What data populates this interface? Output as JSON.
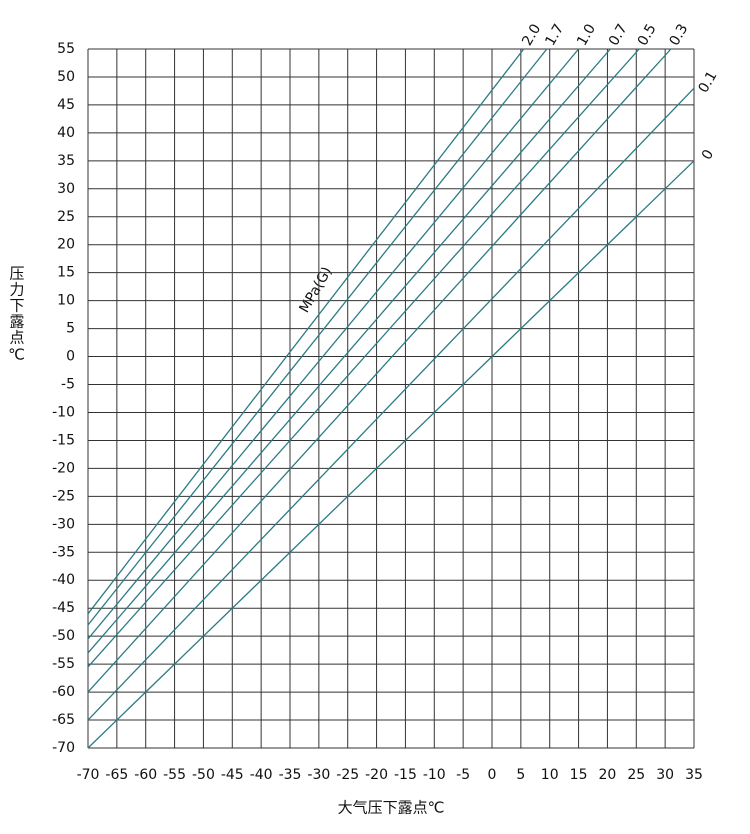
{
  "chart_data": {
    "type": "line",
    "y_label": "压力下露点℃",
    "x_label": "大气压下露点℃",
    "annotation": "MPa(G)",
    "xlim": [
      -70,
      35
    ],
    "ylim": [
      -70,
      55
    ],
    "xticks": [
      -70,
      -65,
      -60,
      -55,
      -50,
      -45,
      -40,
      -35,
      -30,
      -25,
      -20,
      -15,
      -10,
      -5,
      0,
      5,
      10,
      15,
      20,
      25,
      30,
      35
    ],
    "yticks": [
      -70,
      -65,
      -60,
      -55,
      -50,
      -45,
      -40,
      -35,
      -30,
      -25,
      -20,
      -15,
      -10,
      -5,
      0,
      5,
      10,
      15,
      20,
      25,
      30,
      35,
      40,
      45,
      50,
      55
    ],
    "grid": true,
    "series": [
      {
        "name": "2.0",
        "color": "#2a7b84",
        "x": [
          -70,
          5.5
        ],
        "values": [
          -46,
          55
        ]
      },
      {
        "name": "1.7",
        "color": "#2a7b84",
        "x": [
          -70,
          9.5
        ],
        "values": [
          -48,
          55
        ]
      },
      {
        "name": "1.0",
        "color": "#2a7b84",
        "x": [
          -70,
          15
        ],
        "values": [
          -50.5,
          55
        ]
      },
      {
        "name": "0.7",
        "color": "#2a7b84",
        "x": [
          -70,
          20.5
        ],
        "values": [
          -53,
          55
        ]
      },
      {
        "name": "0.5",
        "color": "#2a7b84",
        "x": [
          -70,
          25.5
        ],
        "values": [
          -55.5,
          55
        ]
      },
      {
        "name": "0.3",
        "color": "#2a7b84",
        "x": [
          -70,
          31
        ],
        "values": [
          -60,
          55
        ]
      },
      {
        "name": "0.1",
        "color": "#2a7b84",
        "x": [
          -70,
          35
        ],
        "values": [
          -65,
          48
        ]
      },
      {
        "name": "0",
        "color": "#2a7b84",
        "x": [
          -70,
          35
        ],
        "values": [
          -70,
          35
        ]
      }
    ]
  }
}
